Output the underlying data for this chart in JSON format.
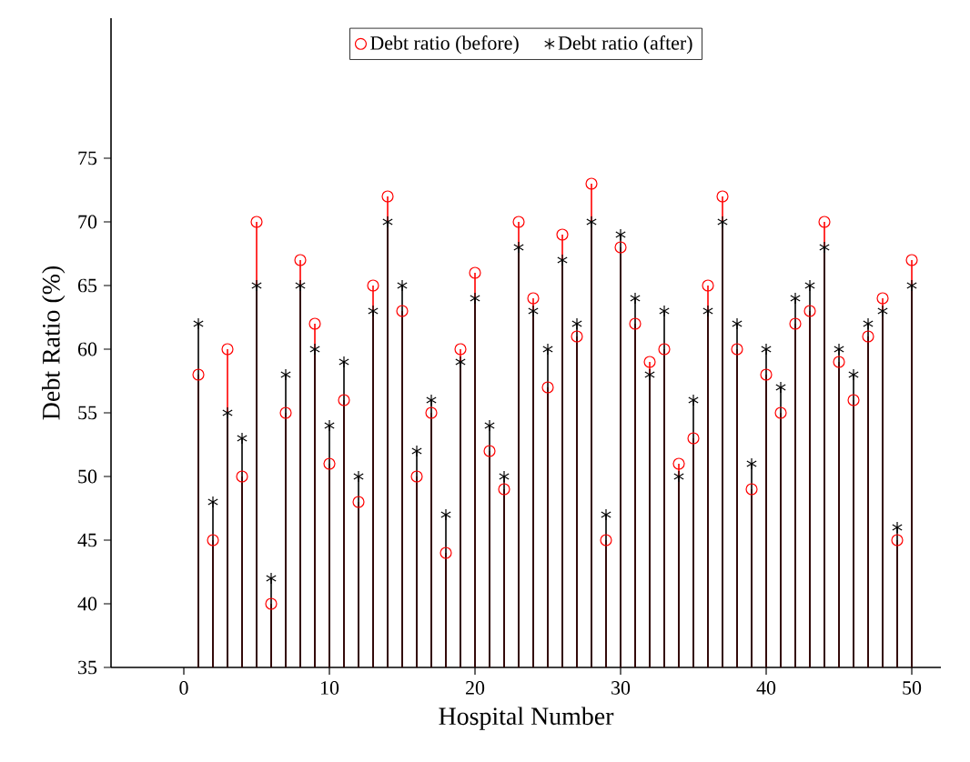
{
  "chart_data": {
    "type": "lollipop",
    "xlabel": "Hospital Number",
    "ylabel": "Debt Ratio (%)",
    "x": [
      1,
      2,
      3,
      4,
      5,
      6,
      7,
      8,
      9,
      10,
      11,
      12,
      13,
      14,
      15,
      16,
      17,
      18,
      19,
      20,
      21,
      22,
      23,
      24,
      25,
      26,
      27,
      28,
      29,
      30,
      31,
      32,
      33,
      34,
      35,
      36,
      37,
      38,
      39,
      40,
      41,
      42,
      43,
      44,
      45,
      46,
      47,
      48,
      49,
      50
    ],
    "series": [
      {
        "name": "Debt ratio (before)",
        "color": "#ff0000",
        "marker": "circle",
        "values": [
          58,
          45,
          60,
          50,
          70,
          40,
          55,
          67,
          62,
          51,
          56,
          48,
          65,
          72,
          63,
          50,
          55,
          44,
          60,
          66,
          52,
          49,
          70,
          64,
          57,
          69,
          61,
          73,
          45,
          68,
          62,
          59,
          60,
          51,
          53,
          65,
          72,
          60,
          49,
          58,
          55,
          62,
          63,
          70,
          59,
          56,
          61,
          64,
          45,
          67
        ]
      },
      {
        "name": "Debt ratio (after)",
        "color": "#000000",
        "marker": "cross",
        "values": [
          62,
          48,
          55,
          53,
          65,
          42,
          58,
          65,
          60,
          54,
          59,
          50,
          63,
          70,
          65,
          52,
          56,
          47,
          59,
          64,
          54,
          50,
          68,
          63,
          60,
          67,
          62,
          70,
          47,
          69,
          64,
          58,
          63,
          50,
          56,
          63,
          70,
          62,
          51,
          60,
          57,
          64,
          65,
          68,
          60,
          58,
          62,
          63,
          46,
          65
        ]
      }
    ],
    "xlim": [
      -5,
      52
    ],
    "ylim": [
      35,
      86
    ],
    "xticks": [
      0,
      10,
      20,
      30,
      40,
      50
    ],
    "yticks": [
      35,
      40,
      45,
      50,
      55,
      60,
      65,
      70,
      75
    ],
    "legend": "top",
    "grid": false
  }
}
